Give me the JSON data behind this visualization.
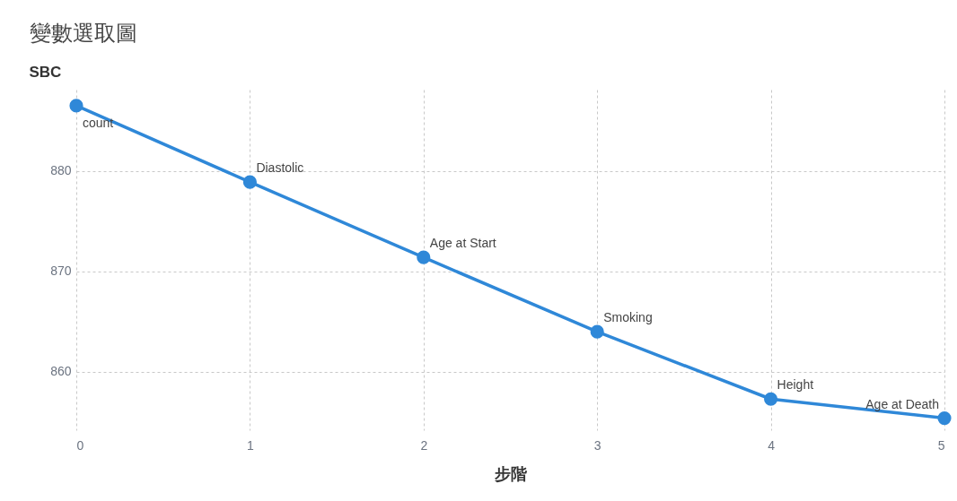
{
  "chart_data": {
    "type": "line",
    "title": "變數選取圖",
    "xlabel": "步階",
    "ylabel": "SBC",
    "x": [
      0,
      1,
      2,
      3,
      4,
      5
    ],
    "series": [
      {
        "color": "#2f88d8",
        "values": [
          886.5,
          878.9,
          871.4,
          864.0,
          857.3,
          855.4
        ]
      }
    ],
    "xlim": [
      0,
      5
    ],
    "xticks": [
      0,
      1,
      2,
      3,
      4,
      5
    ],
    "ylim": [
      854.2,
      888.1
    ],
    "yticks": [
      860,
      870,
      880
    ],
    "grid": true,
    "marker": "circle",
    "line_style": "solid",
    "annotations": [
      {
        "text": "count",
        "x": 0,
        "y": 886.5
      },
      {
        "text": "Diastolic",
        "x": 1,
        "y": 878.9
      },
      {
        "text": "Age at Start",
        "x": 2,
        "y": 871.4
      },
      {
        "text": "Smoking",
        "x": 3,
        "y": 864.0
      },
      {
        "text": "Height",
        "x": 4,
        "y": 857.3
      },
      {
        "text": "Age at Death",
        "x": 5,
        "y": 855.4
      }
    ]
  }
}
